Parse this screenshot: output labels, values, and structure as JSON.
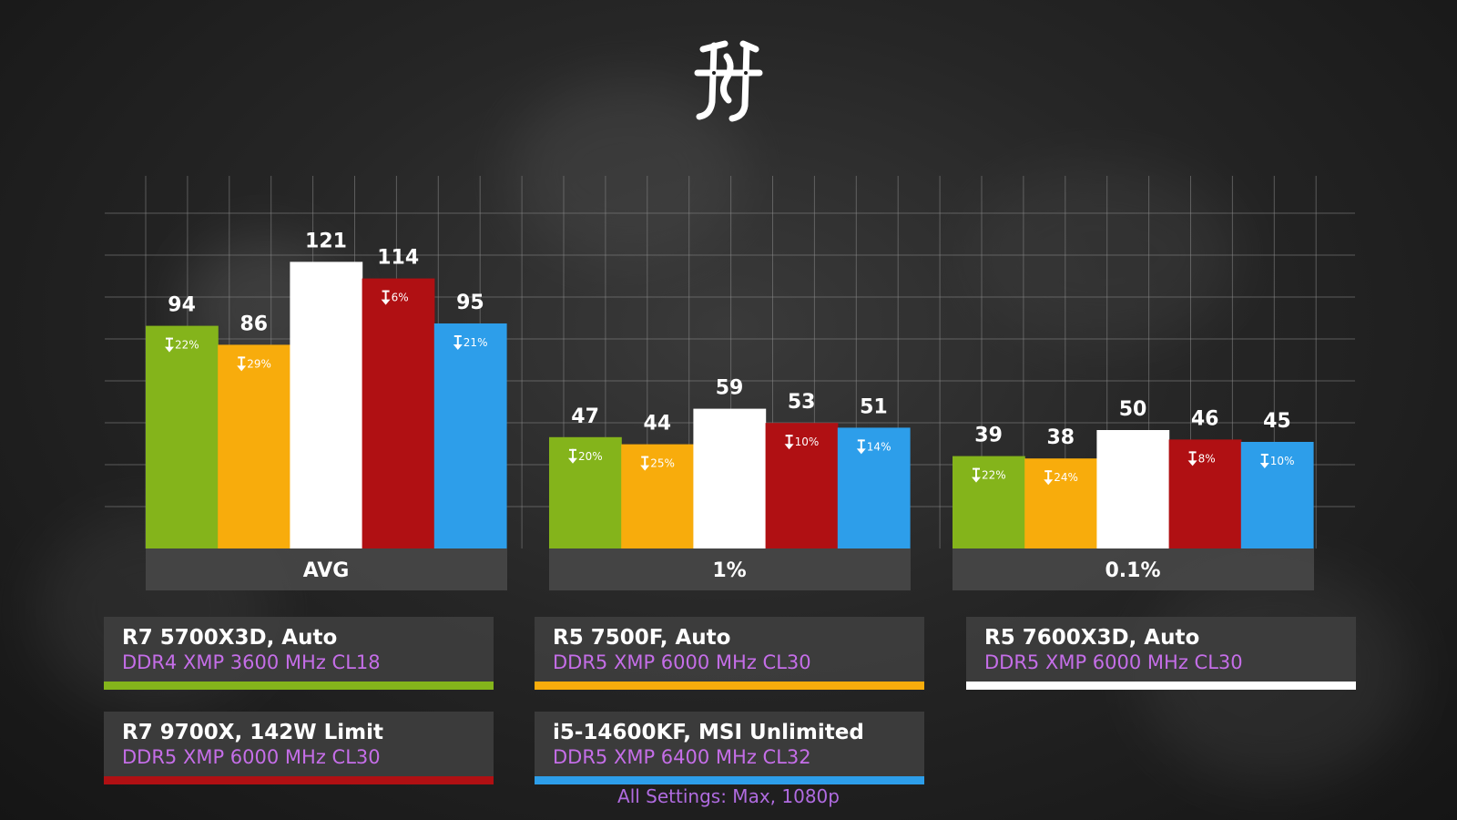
{
  "chart_data": {
    "type": "bar",
    "categories": [
      "AVG",
      "1%",
      "0.1%"
    ],
    "series": [
      {
        "name": "R7 5700X3D, Auto",
        "memory": "DDR4 XMP 3600 MHz CL18",
        "color": "#84b41b",
        "values": [
          94,
          47,
          39
        ],
        "deltas": [
          "22%",
          "20%",
          "22%"
        ]
      },
      {
        "name": "R5 7500F, Auto",
        "memory": "DDR5 XMP 6000 MHz CL30",
        "color": "#f8ac0c",
        "values": [
          86,
          44,
          38
        ],
        "deltas": [
          "29%",
          "25%",
          "24%"
        ]
      },
      {
        "name": "R5 7600X3D, Auto",
        "memory": "DDR5 XMP 6000 MHz CL30",
        "color": "#ffffff",
        "values": [
          121,
          59,
          50
        ],
        "deltas": [
          "",
          "",
          ""
        ]
      },
      {
        "name": "R7 9700X, 142W Limit",
        "memory": "DDR5 XMP 6000 MHz CL30",
        "color": "#b01013",
        "values": [
          114,
          53,
          46
        ],
        "deltas": [
          "6%",
          "10%",
          "8%"
        ]
      },
      {
        "name": "i5-14600KF, MSI Unlimited",
        "memory": "DDR5 XMP 6400 MHz CL32",
        "color": "#2d9eea",
        "values": [
          95,
          51,
          45
        ],
        "deltas": [
          "21%",
          "14%",
          "10%"
        ]
      }
    ],
    "ylim": [
      0,
      140
    ],
    "grid": true,
    "footnote": "All Settings: Max, 1080p"
  },
  "logo": {
    "name": "channel-monogram-logo"
  },
  "colors": {
    "grid": "#8a8a8a",
    "category_band": "#474747",
    "delta_arrow": "#ffffff"
  }
}
